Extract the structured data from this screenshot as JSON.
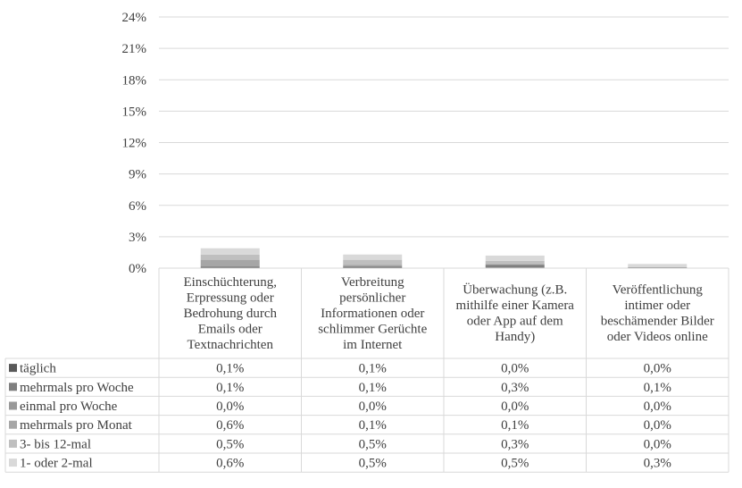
{
  "chart_data": {
    "type": "bar",
    "stacked": true,
    "title": "",
    "xlabel": "",
    "ylabel": "",
    "ylim": [
      0,
      24
    ],
    "yticks": [
      "0%",
      "3%",
      "6%",
      "9%",
      "12%",
      "15%",
      "18%",
      "21%",
      "24%"
    ],
    "grid": true,
    "legend": "data-table-left",
    "categories": [
      [
        "Einschüchterung,",
        "Erpressung oder",
        "Bedrohung durch",
        "Emails oder",
        "Textnachrichten"
      ],
      [
        "Verbreitung",
        "persönlicher",
        "Informationen oder",
        "schlimmer Gerüchte",
        "im Internet"
      ],
      [
        "Überwachung (z.B.",
        "mithilfe einer Kamera",
        "oder App auf dem",
        "Handy)"
      ],
      [
        "Veröffentlichung",
        "intimer oder",
        "beschämender Bilder",
        "oder Videos online"
      ]
    ],
    "series": [
      {
        "name": "täglich",
        "color": "#595959",
        "values": [
          0.1,
          0.1,
          0.0,
          0.0
        ],
        "labels": [
          "0,1%",
          "0,1%",
          "0,0%",
          "0,0%"
        ]
      },
      {
        "name": "mehrmals pro Woche",
        "color": "#7f7f7f",
        "values": [
          0.1,
          0.1,
          0.3,
          0.1
        ],
        "labels": [
          "0,1%",
          "0,1%",
          "0,3%",
          "0,1%"
        ]
      },
      {
        "name": "einmal pro Woche",
        "color": "#999999",
        "values": [
          0.0,
          0.0,
          0.0,
          0.0
        ],
        "labels": [
          "0,0%",
          "0,0%",
          "0,0%",
          "0,0%"
        ]
      },
      {
        "name": "mehrmals pro Monat",
        "color": "#a6a6a6",
        "values": [
          0.6,
          0.1,
          0.1,
          0.0
        ],
        "labels": [
          "0,6%",
          "0,1%",
          "0,1%",
          "0,0%"
        ]
      },
      {
        "name": "3- bis 12-mal",
        "color": "#bfbfbf",
        "values": [
          0.5,
          0.5,
          0.3,
          0.0
        ],
        "labels": [
          "0,5%",
          "0,5%",
          "0,3%",
          "0,0%"
        ]
      },
      {
        "name": "1- oder 2-mal",
        "color": "#d9d9d9",
        "values": [
          0.6,
          0.5,
          0.5,
          0.3
        ],
        "labels": [
          "0,6%",
          "0,5%",
          "0,5%",
          "0,3%"
        ]
      }
    ]
  }
}
